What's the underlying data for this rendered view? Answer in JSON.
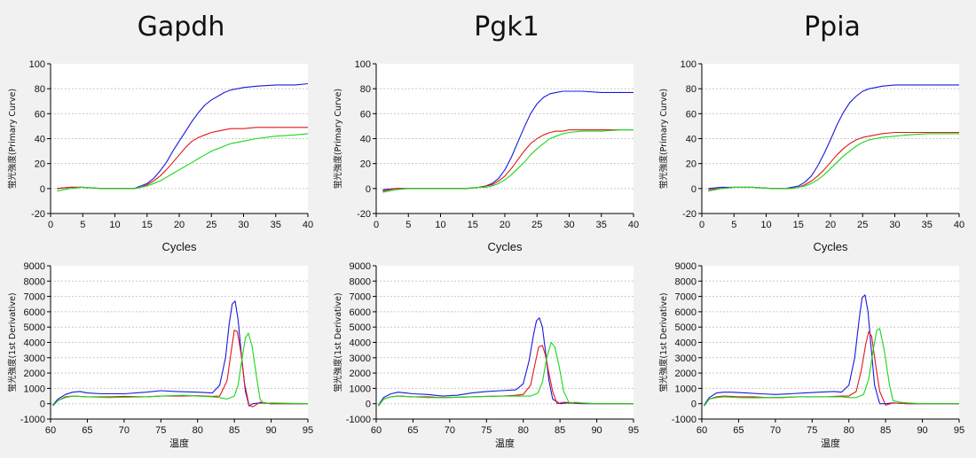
{
  "colors": {
    "blue": "#1818e0",
    "red": "#e01818",
    "green": "#18d818",
    "background": "#f1f1f1"
  },
  "chart_data": [
    {
      "type": "line",
      "panel": "Gapdh amplification",
      "title": "Gapdh",
      "xlabel": "Cycles",
      "ylabel": "蛍光強度(Primary Curve)",
      "xlim": [
        0,
        40
      ],
      "ylim": [
        -20,
        100
      ],
      "xticks": [
        0,
        5,
        10,
        15,
        20,
        25,
        30,
        35,
        40
      ],
      "yticks": [
        -20,
        0,
        20,
        40,
        60,
        80,
        100
      ],
      "x": [
        1,
        3,
        5,
        8,
        11,
        13,
        14,
        15,
        16,
        17,
        18,
        19,
        20,
        21,
        22,
        23,
        24,
        25,
        26,
        27,
        28,
        30,
        32,
        35,
        38,
        40
      ],
      "series": [
        {
          "name": "blue",
          "color": "blue",
          "values": [
            0,
            1,
            1,
            0,
            0,
            0,
            2,
            4,
            8,
            14,
            21,
            30,
            38,
            46,
            54,
            61,
            67,
            71,
            74,
            77,
            79,
            81,
            82,
            83,
            83,
            84
          ]
        },
        {
          "name": "red",
          "color": "red",
          "values": [
            0,
            1,
            1,
            0,
            0,
            0,
            1,
            3,
            6,
            10,
            15,
            21,
            27,
            33,
            38,
            41,
            43,
            45,
            46,
            47,
            48,
            48,
            49,
            49,
            49,
            49
          ]
        },
        {
          "name": "green",
          "color": "green",
          "values": [
            -2,
            0,
            1,
            0,
            0,
            0,
            1,
            2,
            4,
            6,
            9,
            12,
            15,
            18,
            21,
            24,
            27,
            30,
            32,
            34,
            36,
            38,
            40,
            42,
            43,
            44
          ]
        }
      ]
    },
    {
      "type": "line",
      "panel": "Pgk1 amplification",
      "title": "Pgk1",
      "xlabel": "Cycles",
      "ylabel": "蛍光強度(Primary Curve)",
      "xlim": [
        0,
        40
      ],
      "ylim": [
        -20,
        100
      ],
      "xticks": [
        0,
        5,
        10,
        15,
        20,
        25,
        30,
        35,
        40
      ],
      "yticks": [
        -20,
        0,
        20,
        40,
        60,
        80,
        100
      ],
      "x": [
        1,
        3,
        5,
        8,
        11,
        14,
        16,
        17,
        18,
        19,
        20,
        21,
        22,
        23,
        24,
        25,
        26,
        27,
        28,
        29,
        30,
        32,
        35,
        38,
        40
      ],
      "series": [
        {
          "name": "blue",
          "color": "blue",
          "values": [
            -1,
            0,
            0,
            0,
            0,
            0,
            1,
            2,
            4,
            8,
            15,
            25,
            37,
            49,
            60,
            68,
            73,
            76,
            77,
            78,
            78,
            78,
            77,
            77,
            77
          ]
        },
        {
          "name": "red",
          "color": "red",
          "values": [
            -2,
            0,
            0,
            0,
            0,
            0,
            1,
            2,
            3,
            6,
            10,
            16,
            23,
            30,
            36,
            40,
            43,
            45,
            46,
            46,
            47,
            47,
            47,
            47,
            47
          ]
        },
        {
          "name": "green",
          "color": "green",
          "values": [
            -3,
            -1,
            0,
            0,
            0,
            0,
            1,
            1,
            2,
            4,
            7,
            11,
            16,
            21,
            27,
            32,
            36,
            40,
            42,
            44,
            45,
            46,
            46,
            47,
            47
          ]
        }
      ]
    },
    {
      "type": "line",
      "panel": "Ppia amplification",
      "title": "Ppia",
      "xlabel": "Cycles",
      "ylabel": "蛍光強度(Primary Curve)",
      "xlim": [
        0,
        40
      ],
      "ylim": [
        -20,
        100
      ],
      "xticks": [
        0,
        5,
        10,
        15,
        20,
        25,
        30,
        35,
        40
      ],
      "yticks": [
        -20,
        0,
        20,
        40,
        60,
        80,
        100
      ],
      "x": [
        1,
        3,
        5,
        8,
        11,
        13,
        14,
        15,
        16,
        17,
        18,
        19,
        20,
        21,
        22,
        23,
        24,
        25,
        26,
        27,
        28,
        30,
        32,
        35,
        38,
        40
      ],
      "series": [
        {
          "name": "blue",
          "color": "blue",
          "values": [
            0,
            1,
            1,
            1,
            0,
            0,
            1,
            2,
            5,
            10,
            18,
            28,
            39,
            51,
            61,
            69,
            74,
            78,
            80,
            81,
            82,
            83,
            83,
            83,
            83,
            83
          ]
        },
        {
          "name": "red",
          "color": "red",
          "values": [
            -1,
            0,
            1,
            1,
            0,
            0,
            0,
            1,
            3,
            6,
            10,
            15,
            21,
            27,
            32,
            36,
            39,
            41,
            42,
            43,
            44,
            45,
            45,
            45,
            45,
            45
          ]
        },
        {
          "name": "green",
          "color": "green",
          "values": [
            -2,
            0,
            1,
            1,
            0,
            0,
            0,
            1,
            2,
            4,
            7,
            11,
            16,
            21,
            26,
            30,
            34,
            37,
            39,
            40,
            41,
            42,
            43,
            44,
            44,
            44
          ]
        }
      ]
    },
    {
      "type": "line",
      "panel": "Gapdh melt",
      "title": "",
      "xlabel": "温度",
      "ylabel": "蛍光強度(1st Derivative)",
      "xlim": [
        60,
        95
      ],
      "ylim": [
        -1000,
        9000
      ],
      "xticks": [
        60,
        65,
        70,
        75,
        80,
        85,
        90,
        95
      ],
      "yticks": [
        -1000,
        0,
        1000,
        2000,
        3000,
        4000,
        5000,
        6000,
        7000,
        8000,
        9000
      ],
      "series": [
        {
          "name": "blue",
          "color": "blue",
          "x": [
            60.3,
            61,
            62,
            63,
            64,
            65,
            67,
            70,
            73,
            75,
            77,
            80,
            82,
            83,
            83.8,
            84.3,
            84.7,
            85.1,
            85.5,
            86,
            86.5,
            87,
            87.5,
            88.5,
            90,
            95
          ],
          "values": [
            -100,
            300,
            600,
            750,
            800,
            700,
            650,
            650,
            750,
            850,
            800,
            750,
            700,
            1200,
            3000,
            5200,
            6500,
            6700,
            5500,
            3000,
            800,
            -150,
            0,
            50,
            0,
            0
          ]
        },
        {
          "name": "red",
          "color": "red",
          "x": [
            60.3,
            61,
            62,
            63,
            65,
            68,
            70,
            73,
            75,
            78,
            80,
            82,
            83,
            84,
            84.6,
            85,
            85.4,
            85.9,
            86.4,
            87,
            87.5,
            88.5,
            90,
            95
          ],
          "values": [
            -150,
            200,
            450,
            500,
            450,
            450,
            480,
            450,
            500,
            500,
            520,
            480,
            500,
            1500,
            3500,
            4800,
            4700,
            3300,
            1300,
            -100,
            -200,
            100,
            0,
            0
          ]
        },
        {
          "name": "green",
          "color": "green",
          "x": [
            60.3,
            61,
            62,
            63,
            65,
            68,
            70,
            73,
            75,
            78,
            80,
            82,
            83,
            84,
            85,
            85.5,
            86,
            86.5,
            86.9,
            87.4,
            88,
            88.5,
            89,
            90,
            95
          ],
          "values": [
            -150,
            200,
            400,
            500,
            450,
            400,
            420,
            450,
            500,
            550,
            500,
            450,
            400,
            300,
            500,
            1200,
            2800,
            4300,
            4600,
            3800,
            1800,
            300,
            0,
            50,
            0
          ]
        }
      ]
    },
    {
      "type": "line",
      "panel": "Pgk1 melt",
      "title": "",
      "xlabel": "温度",
      "ylabel": "蛍光強度(1st Derivative)",
      "xlim": [
        60,
        95
      ],
      "ylim": [
        -1000,
        9000
      ],
      "xticks": [
        60,
        65,
        70,
        75,
        80,
        85,
        90,
        95
      ],
      "yticks": [
        -1000,
        0,
        1000,
        2000,
        3000,
        4000,
        5000,
        6000,
        7000,
        8000,
        9000
      ],
      "series": [
        {
          "name": "blue",
          "color": "blue",
          "x": [
            60.3,
            61,
            62,
            63,
            64,
            65,
            67,
            69,
            71,
            73,
            75,
            77,
            79,
            80,
            80.8,
            81.4,
            81.8,
            82.2,
            82.6,
            83,
            83.5,
            84,
            85,
            86,
            88,
            90,
            95
          ],
          "values": [
            -100,
            400,
            650,
            750,
            700,
            650,
            600,
            500,
            550,
            700,
            800,
            850,
            900,
            1300,
            2800,
            4500,
            5400,
            5600,
            5000,
            3500,
            1500,
            300,
            0,
            50,
            0,
            0,
            0
          ]
        },
        {
          "name": "red",
          "color": "red",
          "x": [
            60.3,
            61,
            62,
            63,
            65,
            67,
            69,
            71,
            73,
            75,
            77,
            79,
            80,
            81,
            81.6,
            82.1,
            82.6,
            83,
            83.4,
            84,
            84.6,
            85.5,
            87,
            90,
            95
          ],
          "values": [
            -150,
            300,
            450,
            500,
            450,
            450,
            400,
            420,
            450,
            480,
            500,
            550,
            600,
            1200,
            2600,
            3700,
            3800,
            3200,
            2200,
            800,
            0,
            100,
            50,
            0,
            0
          ]
        },
        {
          "name": "green",
          "color": "green",
          "x": [
            60.3,
            61,
            62,
            63,
            65,
            67,
            69,
            71,
            73,
            75,
            77,
            79,
            80,
            81,
            82,
            82.6,
            83.2,
            83.8,
            84.3,
            84.9,
            85.5,
            86.3,
            87,
            88,
            90,
            95
          ],
          "values": [
            -150,
            300,
            450,
            500,
            450,
            400,
            400,
            420,
            450,
            480,
            500,
            500,
            500,
            500,
            700,
            1400,
            3000,
            4000,
            3700,
            2400,
            800,
            0,
            100,
            50,
            0,
            0
          ]
        }
      ]
    },
    {
      "type": "line",
      "panel": "Ppia melt",
      "title": "",
      "xlabel": "温度",
      "ylabel": "蛍光強度(1st Derivative)",
      "xlim": [
        60,
        95
      ],
      "ylim": [
        -1000,
        9000
      ],
      "xticks": [
        60,
        65,
        70,
        75,
        80,
        85,
        90,
        95
      ],
      "yticks": [
        -1000,
        0,
        1000,
        2000,
        3000,
        4000,
        5000,
        6000,
        7000,
        8000,
        9000
      ],
      "series": [
        {
          "name": "blue",
          "color": "blue",
          "x": [
            60.3,
            61,
            62,
            63,
            64,
            66,
            68,
            70,
            72,
            74,
            76,
            78,
            79,
            80,
            80.8,
            81.4,
            81.8,
            82.2,
            82.6,
            83,
            83.5,
            84.2,
            85,
            86,
            88,
            90,
            95
          ],
          "values": [
            -100,
            400,
            700,
            750,
            750,
            700,
            650,
            600,
            650,
            700,
            750,
            800,
            750,
            1200,
            3000,
            5500,
            6900,
            7100,
            6000,
            3800,
            1200,
            0,
            0,
            50,
            0,
            0,
            0
          ]
        },
        {
          "name": "red",
          "color": "red",
          "x": [
            60.3,
            61,
            62,
            63,
            65,
            67,
            69,
            71,
            73,
            75,
            77,
            79,
            80,
            81,
            81.7,
            82.3,
            82.7,
            83.1,
            83.6,
            84.2,
            85,
            86,
            88,
            90,
            95
          ],
          "values": [
            -150,
            300,
            450,
            500,
            450,
            450,
            400,
            400,
            450,
            450,
            450,
            500,
            500,
            800,
            2200,
            3900,
            4700,
            4400,
            2700,
            800,
            -100,
            50,
            0,
            0,
            0
          ]
        },
        {
          "name": "green",
          "color": "green",
          "x": [
            60.3,
            61,
            62,
            63,
            65,
            67,
            69,
            71,
            73,
            75,
            77,
            79,
            80,
            81,
            82,
            82.7,
            83.3,
            83.8,
            84.2,
            84.8,
            85.5,
            86,
            87,
            88,
            90,
            95
          ],
          "values": [
            -150,
            300,
            400,
            450,
            400,
            380,
            400,
            420,
            450,
            450,
            450,
            450,
            400,
            400,
            600,
            1600,
            3500,
            4800,
            4900,
            3500,
            1300,
            200,
            100,
            50,
            0,
            0
          ]
        }
      ]
    }
  ]
}
